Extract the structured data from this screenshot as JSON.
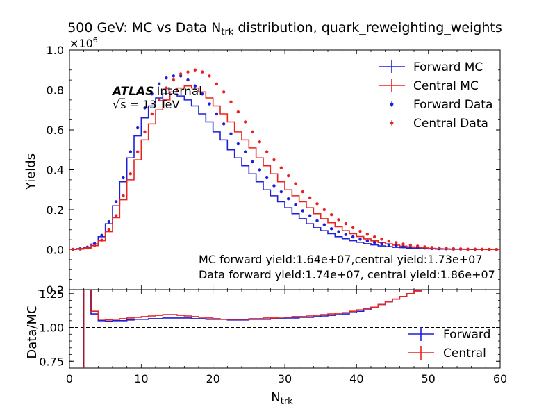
{
  "chart_data": [
    {
      "type": "line",
      "title_main": "500 GeV: MC vs Data N",
      "title_sub": "trk",
      "title_tail": " distribution, quark_reweighting_weights",
      "ylabel": "Yields",
      "yscale_label": "×10",
      "yscale_exp": "6",
      "xlim": [
        0,
        60
      ],
      "ylim": [
        -0.2,
        1.0
      ],
      "y_unit_multiplier": 1000000,
      "yticks": [
        "−0.2",
        "0.0",
        "0.2",
        "0.4",
        "0.6",
        "0.8",
        "1.0"
      ],
      "x_edges": [
        0,
        1,
        2,
        3,
        4,
        5,
        6,
        7,
        8,
        9,
        10,
        11,
        12,
        13,
        14,
        15,
        16,
        17,
        18,
        19,
        20,
        21,
        22,
        23,
        24,
        25,
        26,
        27,
        28,
        29,
        30,
        31,
        32,
        33,
        34,
        35,
        36,
        37,
        38,
        39,
        40,
        41,
        42,
        43,
        44,
        45,
        46,
        47,
        48,
        49,
        50,
        51,
        52,
        53,
        54,
        55,
        56,
        57,
        58,
        59,
        60
      ],
      "series": [
        {
          "name": "Forward MC",
          "kind": "step",
          "color": "#1f1fd6",
          "values": [
            0.002,
            0.005,
            0.012,
            0.028,
            0.065,
            0.13,
            0.22,
            0.34,
            0.46,
            0.57,
            0.66,
            0.72,
            0.76,
            0.78,
            0.78,
            0.77,
            0.75,
            0.72,
            0.68,
            0.64,
            0.59,
            0.55,
            0.5,
            0.46,
            0.42,
            0.38,
            0.34,
            0.3,
            0.27,
            0.24,
            0.21,
            0.18,
            0.155,
            0.13,
            0.11,
            0.095,
            0.08,
            0.065,
            0.055,
            0.045,
            0.037,
            0.03,
            0.024,
            0.019,
            0.015,
            0.012,
            0.01,
            0.008,
            0.006,
            0.005,
            0.004,
            0.003,
            0.003,
            0.002,
            0.002,
            0.002,
            0.001,
            0.001,
            0.001,
            0.001
          ]
        },
        {
          "name": "Central MC",
          "kind": "step",
          "color": "#e8231f",
          "values": [
            0.001,
            0.003,
            0.008,
            0.02,
            0.045,
            0.09,
            0.16,
            0.25,
            0.35,
            0.45,
            0.55,
            0.63,
            0.7,
            0.75,
            0.79,
            0.81,
            0.82,
            0.81,
            0.79,
            0.76,
            0.72,
            0.68,
            0.64,
            0.59,
            0.55,
            0.51,
            0.46,
            0.42,
            0.38,
            0.34,
            0.3,
            0.27,
            0.24,
            0.21,
            0.18,
            0.155,
            0.135,
            0.115,
            0.095,
            0.08,
            0.066,
            0.054,
            0.044,
            0.036,
            0.029,
            0.023,
            0.018,
            0.014,
            0.011,
            0.009,
            0.007,
            0.005,
            0.004,
            0.003,
            0.003,
            0.002,
            0.002,
            0.001,
            0.001,
            0.001
          ]
        },
        {
          "name": "Forward Data",
          "kind": "points",
          "color": "#1f1fd6",
          "values": [
            0.002,
            0.005,
            0.013,
            0.031,
            0.072,
            0.14,
            0.24,
            0.36,
            0.49,
            0.61,
            0.71,
            0.78,
            0.83,
            0.86,
            0.87,
            0.87,
            0.85,
            0.82,
            0.78,
            0.73,
            0.68,
            0.63,
            0.58,
            0.53,
            0.49,
            0.44,
            0.4,
            0.36,
            0.32,
            0.29,
            0.255,
            0.225,
            0.195,
            0.17,
            0.145,
            0.125,
            0.105,
            0.09,
            0.076,
            0.064,
            0.053,
            0.044,
            0.036,
            0.029,
            0.024,
            0.019,
            0.015,
            0.012,
            0.01,
            0.008,
            0.006,
            0.005,
            0.004,
            0.003,
            0.003,
            0.002,
            0.002,
            0.002,
            0.001,
            0.001
          ]
        },
        {
          "name": "Central Data",
          "kind": "points",
          "color": "#e8231f",
          "values": [
            0.001,
            0.003,
            0.009,
            0.021,
            0.048,
            0.1,
            0.17,
            0.27,
            0.38,
            0.49,
            0.59,
            0.68,
            0.75,
            0.81,
            0.85,
            0.88,
            0.89,
            0.9,
            0.89,
            0.87,
            0.83,
            0.79,
            0.74,
            0.69,
            0.64,
            0.59,
            0.54,
            0.49,
            0.45,
            0.41,
            0.37,
            0.33,
            0.29,
            0.26,
            0.23,
            0.2,
            0.175,
            0.15,
            0.13,
            0.11,
            0.092,
            0.077,
            0.064,
            0.053,
            0.043,
            0.035,
            0.028,
            0.023,
            0.018,
            0.014,
            0.011,
            0.009,
            0.007,
            0.005,
            0.004,
            0.003,
            0.003,
            0.002,
            0.002,
            0.001
          ]
        }
      ],
      "legend": {
        "placement": "top-right",
        "entries": [
          "Forward MC",
          "Central MC",
          "Forward Data",
          "Central Data"
        ]
      },
      "atlas_label": "ATLAS",
      "atlas_tag": "Internal",
      "energy_sqrt": "√",
      "energy_label": "s = 13 TeV",
      "annotation_1": "MC forward yield:1.64e+07,central yield:1.73e+07",
      "annotation_2": "Data forward yield:1.74e+07, central yield:1.86e+07"
    },
    {
      "type": "line",
      "ylabel": "Data/MC",
      "xlabel_main": "N",
      "xlabel_sub": "trk",
      "xlim": [
        0,
        60
      ],
      "ylim": [
        0.7,
        1.28
      ],
      "yticks": [
        "0.75",
        "1.00",
        "1.25"
      ],
      "xticks": [
        "0",
        "10",
        "20",
        "30",
        "40",
        "50",
        "60"
      ],
      "reference_line": 1.0,
      "series": [
        {
          "name": "Forward",
          "kind": "step",
          "color": "#1f1fd6",
          "start": 2,
          "values": [
            1.6,
            1.1,
            1.05,
            1.045,
            1.05,
            1.05,
            1.055,
            1.06,
            1.06,
            1.065,
            1.065,
            1.07,
            1.07,
            1.07,
            1.07,
            1.065,
            1.065,
            1.06,
            1.06,
            1.06,
            1.055,
            1.055,
            1.055,
            1.06,
            1.06,
            1.06,
            1.065,
            1.065,
            1.07,
            1.07,
            1.075,
            1.075,
            1.08,
            1.085,
            1.09,
            1.095,
            1.1,
            1.11,
            1.12,
            1.13,
            1.15,
            1.17,
            1.19,
            1.21,
            1.23,
            1.25,
            1.27,
            1.3
          ]
        },
        {
          "name": "Central",
          "kind": "step",
          "color": "#e8231f",
          "start": 2,
          "values": [
            1.6,
            1.12,
            1.06,
            1.055,
            1.06,
            1.065,
            1.07,
            1.075,
            1.08,
            1.085,
            1.09,
            1.095,
            1.095,
            1.09,
            1.085,
            1.08,
            1.075,
            1.07,
            1.065,
            1.06,
            1.06,
            1.06,
            1.06,
            1.065,
            1.065,
            1.07,
            1.07,
            1.075,
            1.075,
            1.08,
            1.08,
            1.085,
            1.09,
            1.095,
            1.1,
            1.105,
            1.11,
            1.12,
            1.13,
            1.14,
            1.15,
            1.17,
            1.19,
            1.21,
            1.23,
            1.25,
            1.27,
            1.3
          ]
        }
      ],
      "legend": {
        "placement": "right",
        "entries": [
          "Forward",
          "Central"
        ]
      }
    }
  ]
}
